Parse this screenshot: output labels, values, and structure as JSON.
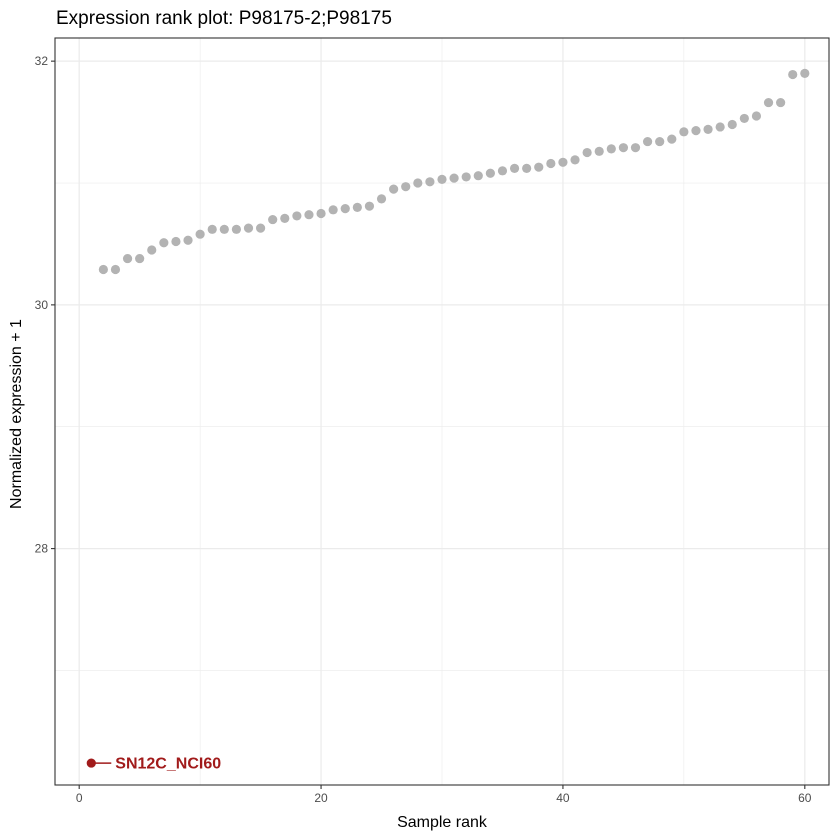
{
  "chart_data": {
    "type": "scatter",
    "title": "Expression rank plot: P98175-2;P98175",
    "xlabel": "Sample rank",
    "ylabel": "Normalized expression + 1",
    "xlim": [
      -2,
      62
    ],
    "ylim": [
      26.06,
      32.19
    ],
    "x_ticks": [
      0,
      20,
      40,
      60
    ],
    "x_tick_labels": [
      "0",
      "20",
      "40",
      "60"
    ],
    "y_ticks": [
      28,
      30,
      32
    ],
    "y_tick_labels": [
      "28",
      "30",
      "32"
    ],
    "y_minor_ticks": [
      27,
      29,
      31
    ],
    "x_minor_ticks": [
      10,
      30,
      50
    ],
    "grid": true,
    "point_color": "#b3b3b3",
    "highlight_color": "#a11b1b",
    "series": [
      {
        "points": [
          [
            2,
            30.29
          ],
          [
            3,
            30.29
          ],
          [
            4,
            30.38
          ],
          [
            5,
            30.38
          ],
          [
            6,
            30.45
          ],
          [
            7,
            30.51
          ],
          [
            8,
            30.52
          ],
          [
            9,
            30.53
          ],
          [
            10,
            30.58
          ],
          [
            11,
            30.62
          ],
          [
            12,
            30.62
          ],
          [
            13,
            30.62
          ],
          [
            14,
            30.63
          ],
          [
            15,
            30.63
          ],
          [
            16,
            30.7
          ],
          [
            17,
            30.71
          ],
          [
            18,
            30.73
          ],
          [
            19,
            30.74
          ],
          [
            20,
            30.75
          ],
          [
            21,
            30.78
          ],
          [
            22,
            30.79
          ],
          [
            23,
            30.8
          ],
          [
            24,
            30.81
          ],
          [
            25,
            30.87
          ],
          [
            26,
            30.95
          ],
          [
            27,
            30.97
          ],
          [
            28,
            31.0
          ],
          [
            29,
            31.01
          ],
          [
            30,
            31.03
          ],
          [
            31,
            31.04
          ],
          [
            32,
            31.05
          ],
          [
            33,
            31.06
          ],
          [
            34,
            31.08
          ],
          [
            35,
            31.1
          ],
          [
            36,
            31.12
          ],
          [
            37,
            31.12
          ],
          [
            38,
            31.13
          ],
          [
            39,
            31.16
          ],
          [
            40,
            31.17
          ],
          [
            41,
            31.19
          ],
          [
            42,
            31.25
          ],
          [
            43,
            31.26
          ],
          [
            44,
            31.28
          ],
          [
            45,
            31.29
          ],
          [
            46,
            31.29
          ],
          [
            47,
            31.34
          ],
          [
            48,
            31.34
          ],
          [
            49,
            31.36
          ],
          [
            50,
            31.42
          ],
          [
            51,
            31.43
          ],
          [
            52,
            31.44
          ],
          [
            53,
            31.46
          ],
          [
            54,
            31.48
          ],
          [
            55,
            31.53
          ],
          [
            56,
            31.55
          ],
          [
            57,
            31.66
          ],
          [
            58,
            31.66
          ],
          [
            59,
            31.89
          ],
          [
            60,
            31.9
          ]
        ]
      }
    ],
    "highlight": {
      "label": "SN12C_NCI60",
      "x": 1,
      "y": 26.24
    }
  }
}
